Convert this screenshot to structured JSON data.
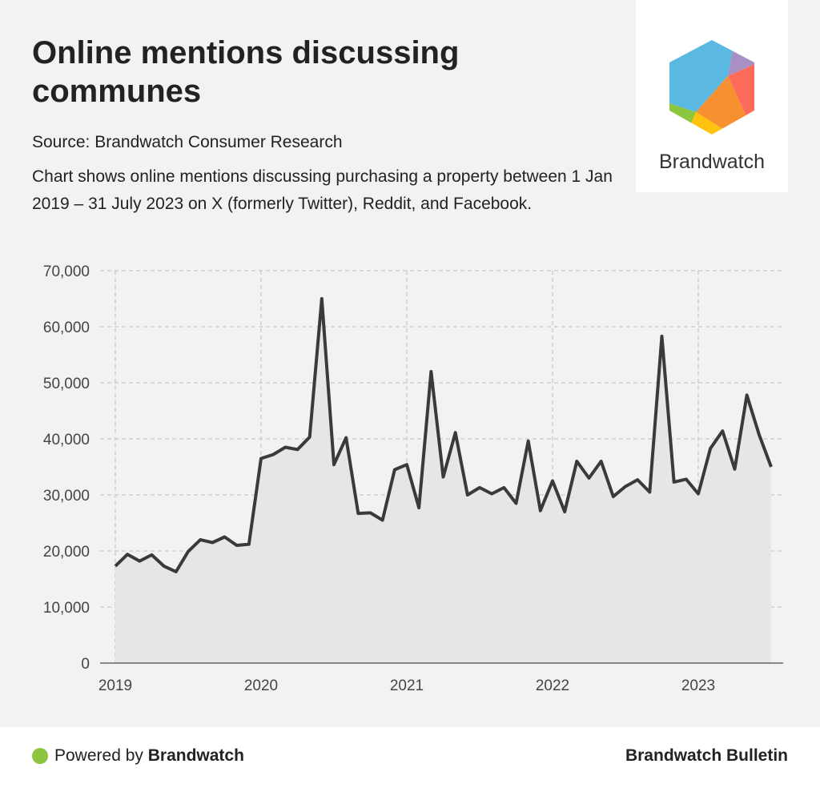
{
  "header": {
    "title": "Online mentions discussing communes",
    "source": "Source: Brandwatch Consumer Research",
    "description": "Chart shows online mentions discussing purchasing a property between 1 Jan 2019 – 31 July 2023 on X (formerly Twitter), Reddit, and Facebook."
  },
  "logo": {
    "text": "Brandwatch",
    "colors": [
      "#5bb8e0",
      "#a88fc4",
      "#ff6b5b",
      "#f7902f",
      "#ffc20e",
      "#8cc63f"
    ]
  },
  "footer": {
    "powered_prefix": "Powered by ",
    "powered_brand": "Brandwatch",
    "bulletin": "Brandwatch Bulletin",
    "dot_color": "#8cc63f"
  },
  "chart_data": {
    "type": "area",
    "title": "",
    "xlabel": "",
    "ylabel": "",
    "ylim": [
      0,
      70000
    ],
    "yticks": [
      0,
      10000,
      20000,
      30000,
      40000,
      50000,
      60000,
      70000
    ],
    "ytick_labels": [
      "0",
      "10,000",
      "20,000",
      "30,000",
      "40,000",
      "50,000",
      "60,000",
      "70,000"
    ],
    "xtick_labels": [
      "2019",
      "2020",
      "2021",
      "2022",
      "2023"
    ],
    "grid": true,
    "line_color": "#3a3a3a",
    "fill_color": "#e6e6e6",
    "x_start": "2019-01",
    "x_end": "2023-07",
    "interval": "month",
    "values": [
      17300,
      19400,
      18200,
      19300,
      17300,
      16300,
      19900,
      22000,
      21500,
      22500,
      21000,
      21200,
      36500,
      37200,
      38500,
      38100,
      40300,
      65000,
      35400,
      40200,
      26700,
      26800,
      25500,
      34500,
      35400,
      27700,
      52000,
      33200,
      41100,
      30000,
      31300,
      30200,
      31300,
      28500,
      39600,
      27200,
      32500,
      27000,
      36000,
      33000,
      36000,
      29700,
      31500,
      32700,
      30500,
      58300,
      32300,
      32800,
      30200,
      38300,
      41400,
      34600,
      47800,
      40800,
      35000
    ]
  }
}
